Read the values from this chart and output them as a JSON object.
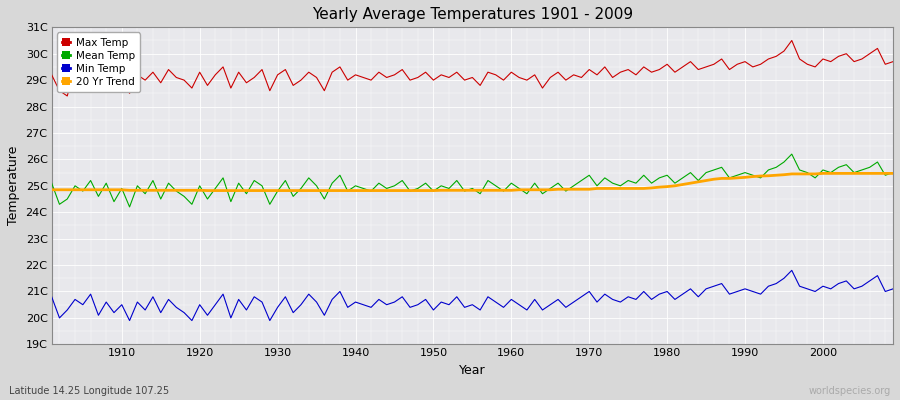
{
  "title": "Yearly Average Temperatures 1901 - 2009",
  "xlabel": "Year",
  "ylabel": "Temperature",
  "bottom_left": "Latitude 14.25 Longitude 107.25",
  "bottom_right": "worldspecies.org",
  "ylim": [
    19,
    31
  ],
  "xlim": [
    1901,
    2009
  ],
  "yticks": [
    19,
    20,
    21,
    22,
    23,
    24,
    25,
    26,
    27,
    28,
    29,
    30,
    31
  ],
  "ytick_labels": [
    "19C",
    "20C",
    "21C",
    "22C",
    "23C",
    "24C",
    "25C",
    "26C",
    "27C",
    "28C",
    "29C",
    "30C",
    "31C"
  ],
  "xticks": [
    1910,
    1920,
    1930,
    1940,
    1950,
    1960,
    1970,
    1980,
    1990,
    2000
  ],
  "max_temp_color": "#cc0000",
  "mean_temp_color": "#00aa00",
  "min_temp_color": "#0000cc",
  "trend_color": "#ffa500",
  "legend_labels": [
    "Max Temp",
    "Mean Temp",
    "Min Temp",
    "20 Yr Trend"
  ],
  "years": [
    1901,
    1902,
    1903,
    1904,
    1905,
    1906,
    1907,
    1908,
    1909,
    1910,
    1911,
    1912,
    1913,
    1914,
    1915,
    1916,
    1917,
    1918,
    1919,
    1920,
    1921,
    1922,
    1923,
    1924,
    1925,
    1926,
    1927,
    1928,
    1929,
    1930,
    1931,
    1932,
    1933,
    1934,
    1935,
    1936,
    1937,
    1938,
    1939,
    1940,
    1941,
    1942,
    1943,
    1944,
    1945,
    1946,
    1947,
    1948,
    1949,
    1950,
    1951,
    1952,
    1953,
    1954,
    1955,
    1956,
    1957,
    1958,
    1959,
    1960,
    1961,
    1962,
    1963,
    1964,
    1965,
    1966,
    1967,
    1968,
    1969,
    1970,
    1971,
    1972,
    1973,
    1974,
    1975,
    1976,
    1977,
    1978,
    1979,
    1980,
    1981,
    1982,
    1983,
    1984,
    1985,
    1986,
    1987,
    1988,
    1989,
    1990,
    1991,
    1992,
    1993,
    1994,
    1995,
    1996,
    1997,
    1998,
    1999,
    2000,
    2001,
    2002,
    2003,
    2004,
    2005,
    2006,
    2007,
    2008,
    2009
  ],
  "max_temp": [
    29.2,
    28.6,
    28.4,
    29.5,
    29.1,
    29.0,
    29.3,
    29.0,
    28.8,
    29.1,
    28.5,
    29.2,
    29.0,
    29.3,
    28.9,
    29.4,
    29.1,
    29.0,
    28.7,
    29.3,
    28.8,
    29.2,
    29.5,
    28.7,
    29.3,
    28.9,
    29.1,
    29.4,
    28.6,
    29.2,
    29.4,
    28.8,
    29.0,
    29.3,
    29.1,
    28.6,
    29.3,
    29.5,
    29.0,
    29.2,
    29.1,
    29.0,
    29.3,
    29.1,
    29.2,
    29.4,
    29.0,
    29.1,
    29.3,
    29.0,
    29.2,
    29.1,
    29.3,
    29.0,
    29.1,
    28.8,
    29.3,
    29.2,
    29.0,
    29.3,
    29.1,
    29.0,
    29.2,
    28.7,
    29.1,
    29.3,
    29.0,
    29.2,
    29.1,
    29.4,
    29.2,
    29.5,
    29.1,
    29.3,
    29.4,
    29.2,
    29.5,
    29.3,
    29.4,
    29.6,
    29.3,
    29.5,
    29.7,
    29.4,
    29.5,
    29.6,
    29.8,
    29.4,
    29.6,
    29.7,
    29.5,
    29.6,
    29.8,
    29.9,
    30.1,
    30.5,
    29.8,
    29.6,
    29.5,
    29.8,
    29.7,
    29.9,
    30.0,
    29.7,
    29.8,
    30.0,
    30.2,
    29.6,
    29.7
  ],
  "mean_temp": [
    25.1,
    24.3,
    24.5,
    25.0,
    24.8,
    25.2,
    24.6,
    25.1,
    24.4,
    24.9,
    24.2,
    25.0,
    24.7,
    25.2,
    24.5,
    25.1,
    24.8,
    24.6,
    24.3,
    25.0,
    24.5,
    24.9,
    25.3,
    24.4,
    25.1,
    24.7,
    25.2,
    25.0,
    24.3,
    24.8,
    25.2,
    24.6,
    24.9,
    25.3,
    25.0,
    24.5,
    25.1,
    25.4,
    24.8,
    25.0,
    24.9,
    24.8,
    25.1,
    24.9,
    25.0,
    25.2,
    24.8,
    24.9,
    25.1,
    24.8,
    25.0,
    24.9,
    25.2,
    24.8,
    24.9,
    24.7,
    25.2,
    25.0,
    24.8,
    25.1,
    24.9,
    24.7,
    25.1,
    24.7,
    24.9,
    25.1,
    24.8,
    25.0,
    25.2,
    25.4,
    25.0,
    25.3,
    25.1,
    25.0,
    25.2,
    25.1,
    25.4,
    25.1,
    25.3,
    25.4,
    25.1,
    25.3,
    25.5,
    25.2,
    25.5,
    25.6,
    25.7,
    25.3,
    25.4,
    25.5,
    25.4,
    25.3,
    25.6,
    25.7,
    25.9,
    26.2,
    25.6,
    25.5,
    25.3,
    25.6,
    25.5,
    25.7,
    25.8,
    25.5,
    25.6,
    25.7,
    25.9,
    25.4,
    25.5
  ],
  "min_temp": [
    20.8,
    20.0,
    20.3,
    20.7,
    20.5,
    20.9,
    20.1,
    20.6,
    20.2,
    20.5,
    19.9,
    20.6,
    20.3,
    20.8,
    20.2,
    20.7,
    20.4,
    20.2,
    19.9,
    20.5,
    20.1,
    20.5,
    20.9,
    20.0,
    20.7,
    20.3,
    20.8,
    20.6,
    19.9,
    20.4,
    20.8,
    20.2,
    20.5,
    20.9,
    20.6,
    20.1,
    20.7,
    21.0,
    20.4,
    20.6,
    20.5,
    20.4,
    20.7,
    20.5,
    20.6,
    20.8,
    20.4,
    20.5,
    20.7,
    20.3,
    20.6,
    20.5,
    20.8,
    20.4,
    20.5,
    20.3,
    20.8,
    20.6,
    20.4,
    20.7,
    20.5,
    20.3,
    20.7,
    20.3,
    20.5,
    20.7,
    20.4,
    20.6,
    20.8,
    21.0,
    20.6,
    20.9,
    20.7,
    20.6,
    20.8,
    20.7,
    21.0,
    20.7,
    20.9,
    21.0,
    20.7,
    20.9,
    21.1,
    20.8,
    21.1,
    21.2,
    21.3,
    20.9,
    21.0,
    21.1,
    21.0,
    20.9,
    21.2,
    21.3,
    21.5,
    21.8,
    21.2,
    21.1,
    21.0,
    21.2,
    21.1,
    21.3,
    21.4,
    21.1,
    21.2,
    21.4,
    21.6,
    21.0,
    21.1
  ],
  "trend_temp": [
    24.85,
    24.85,
    24.85,
    24.85,
    24.85,
    24.85,
    24.85,
    24.85,
    24.85,
    24.85,
    24.83,
    24.83,
    24.83,
    24.83,
    24.83,
    24.83,
    24.83,
    24.83,
    24.83,
    24.83,
    24.82,
    24.82,
    24.82,
    24.82,
    24.82,
    24.82,
    24.82,
    24.82,
    24.82,
    24.82,
    24.82,
    24.82,
    24.82,
    24.82,
    24.82,
    24.82,
    24.82,
    24.82,
    24.82,
    24.82,
    24.82,
    24.82,
    24.82,
    24.82,
    24.82,
    24.82,
    24.82,
    24.82,
    24.82,
    24.82,
    24.83,
    24.83,
    24.83,
    24.83,
    24.83,
    24.83,
    24.83,
    24.83,
    24.83,
    24.83,
    24.85,
    24.85,
    24.85,
    24.85,
    24.85,
    24.87,
    24.87,
    24.87,
    24.87,
    24.87,
    24.9,
    24.9,
    24.9,
    24.9,
    24.9,
    24.9,
    24.9,
    24.92,
    24.95,
    24.97,
    25.0,
    25.05,
    25.1,
    25.15,
    25.2,
    25.25,
    25.28,
    25.28,
    25.3,
    25.32,
    25.35,
    25.37,
    25.38,
    25.4,
    25.42,
    25.45,
    25.45,
    25.45,
    25.45,
    25.47,
    25.47,
    25.47,
    25.47,
    25.47,
    25.47,
    25.47,
    25.47,
    25.47,
    25.47
  ]
}
